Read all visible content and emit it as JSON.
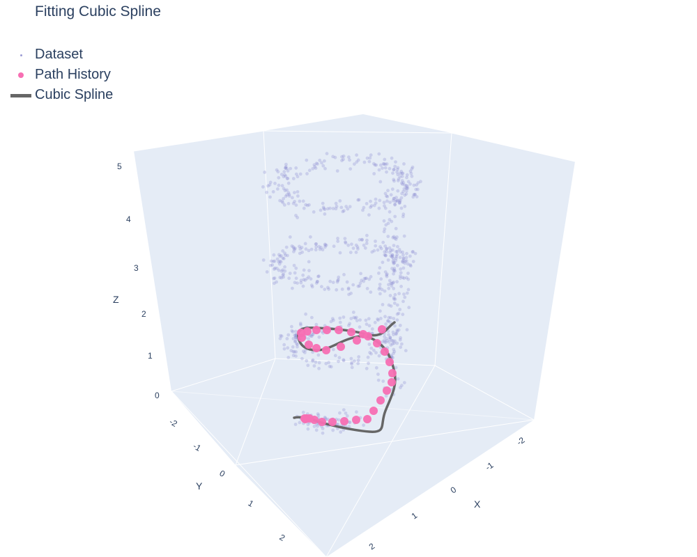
{
  "chart_data": {
    "type": "scatter3d",
    "title": "Fitting Cubic Spline",
    "legend": {
      "placement": "top-left",
      "entries": [
        "Dataset",
        "Path History",
        "Cubic Spline"
      ]
    },
    "axes": {
      "x": {
        "label": "X",
        "range": [
          -2.5,
          2.5
        ],
        "ticks": [
          "-2",
          "-1",
          "0",
          "1",
          "2"
        ]
      },
      "y": {
        "label": "Y",
        "range": [
          -2.5,
          2.5
        ],
        "ticks": [
          "-2",
          "-1",
          "0",
          "1",
          "2"
        ]
      },
      "z": {
        "label": "Z",
        "range": [
          0,
          5.2
        ],
        "ticks": [
          "0",
          "1",
          "2",
          "3",
          "4",
          "5"
        ]
      }
    },
    "series": [
      {
        "name": "Dataset",
        "kind": "markers",
        "color": "#8c8cd0",
        "description": "noisy samples of a helix-like spiral, z from 0 to 5"
      },
      {
        "name": "Path History",
        "kind": "markers",
        "color": "#f76fb3",
        "points": [
          [
            0.5,
            1.8,
            0.0
          ],
          [
            0.3,
            1.3,
            0.0
          ],
          [
            0.1,
            0.8,
            0.0
          ],
          [
            -0.1,
            0.3,
            0.0
          ],
          [
            -0.3,
            -0.2,
            0.0
          ],
          [
            -0.5,
            -0.7,
            0.0
          ],
          [
            -0.7,
            -1.2,
            0.0
          ],
          [
            -0.9,
            -1.5,
            0.0
          ],
          [
            -1.0,
            -1.7,
            0.0
          ],
          [
            -1.05,
            -1.75,
            0.0
          ],
          [
            1.2,
            0.5,
            0.15
          ],
          [
            1.4,
            0.9,
            0.3
          ],
          [
            1.5,
            1.2,
            0.5
          ],
          [
            1.5,
            1.4,
            0.7
          ],
          [
            1.4,
            1.5,
            0.9
          ],
          [
            1.2,
            1.4,
            1.1
          ],
          [
            1.0,
            1.2,
            1.25
          ],
          [
            0.8,
            0.9,
            1.4
          ],
          [
            0.6,
            0.5,
            1.55
          ],
          [
            0.2,
            0.6,
            1.65
          ],
          [
            -0.2,
            0.3,
            1.7
          ],
          [
            -0.6,
            -0.1,
            1.75
          ],
          [
            -0.9,
            -0.6,
            1.8
          ],
          [
            -1.0,
            -1.0,
            1.8
          ],
          [
            -0.9,
            -1.3,
            1.82
          ],
          [
            -0.6,
            -1.4,
            1.85
          ],
          [
            -0.2,
            -1.2,
            1.87
          ],
          [
            0.3,
            -0.8,
            1.9
          ],
          [
            0.7,
            -0.3,
            1.92
          ],
          [
            1.0,
            0.1,
            1.95
          ],
          [
            1.1,
            0.4,
            1.97
          ]
        ]
      },
      {
        "name": "Cubic Spline",
        "kind": "lines",
        "color": "#666666"
      }
    ]
  }
}
